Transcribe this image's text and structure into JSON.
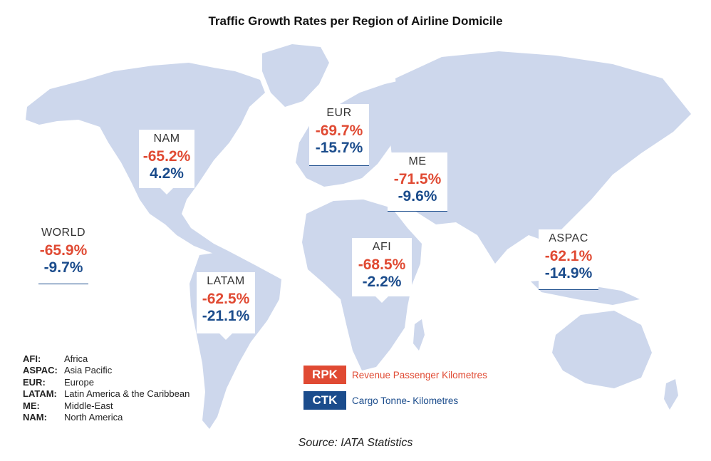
{
  "title": "Traffic Growth Rates per Region of Airline Domicile",
  "colors": {
    "rpk": "#e04a33",
    "ctk": "#1b4c8c",
    "land": "#cdd7ec"
  },
  "regions": {
    "nam": {
      "label": "NAM",
      "rpk": "-65.2%",
      "ctk": "4.2%"
    },
    "eur": {
      "label": "EUR",
      "rpk": "-69.7%",
      "ctk": "-15.7%"
    },
    "me": {
      "label": "ME",
      "rpk": "-71.5%",
      "ctk": "-9.6%"
    },
    "world": {
      "label": "WORLD",
      "rpk": "-65.9%",
      "ctk": "-9.7%"
    },
    "afi": {
      "label": "AFI",
      "rpk": "-68.5%",
      "ctk": "-2.2%"
    },
    "latam": {
      "label": "LATAM",
      "rpk": "-62.5%",
      "ctk": "-21.1%"
    },
    "aspac": {
      "label": "ASPAC",
      "rpk": "-62.1%",
      "ctk": "-14.9%"
    }
  },
  "abbreviations": [
    {
      "key": "AFI:",
      "value": "Africa"
    },
    {
      "key": "ASPAC:",
      "value": "Asia Pacific"
    },
    {
      "key": "EUR:",
      "value": "Europe"
    },
    {
      "key": "LATAM:",
      "value": "Latin America & the Caribbean"
    },
    {
      "key": "ME:",
      "value": "Middle-East"
    },
    {
      "key": "NAM:",
      "value": "North America"
    }
  ],
  "legend": {
    "rpk": {
      "key": "RPK",
      "label": "Revenue Passenger Kilometres"
    },
    "ctk": {
      "key": "CTK",
      "label": "Cargo Tonne- Kilometres"
    }
  },
  "source": "Source: IATA Statistics"
}
